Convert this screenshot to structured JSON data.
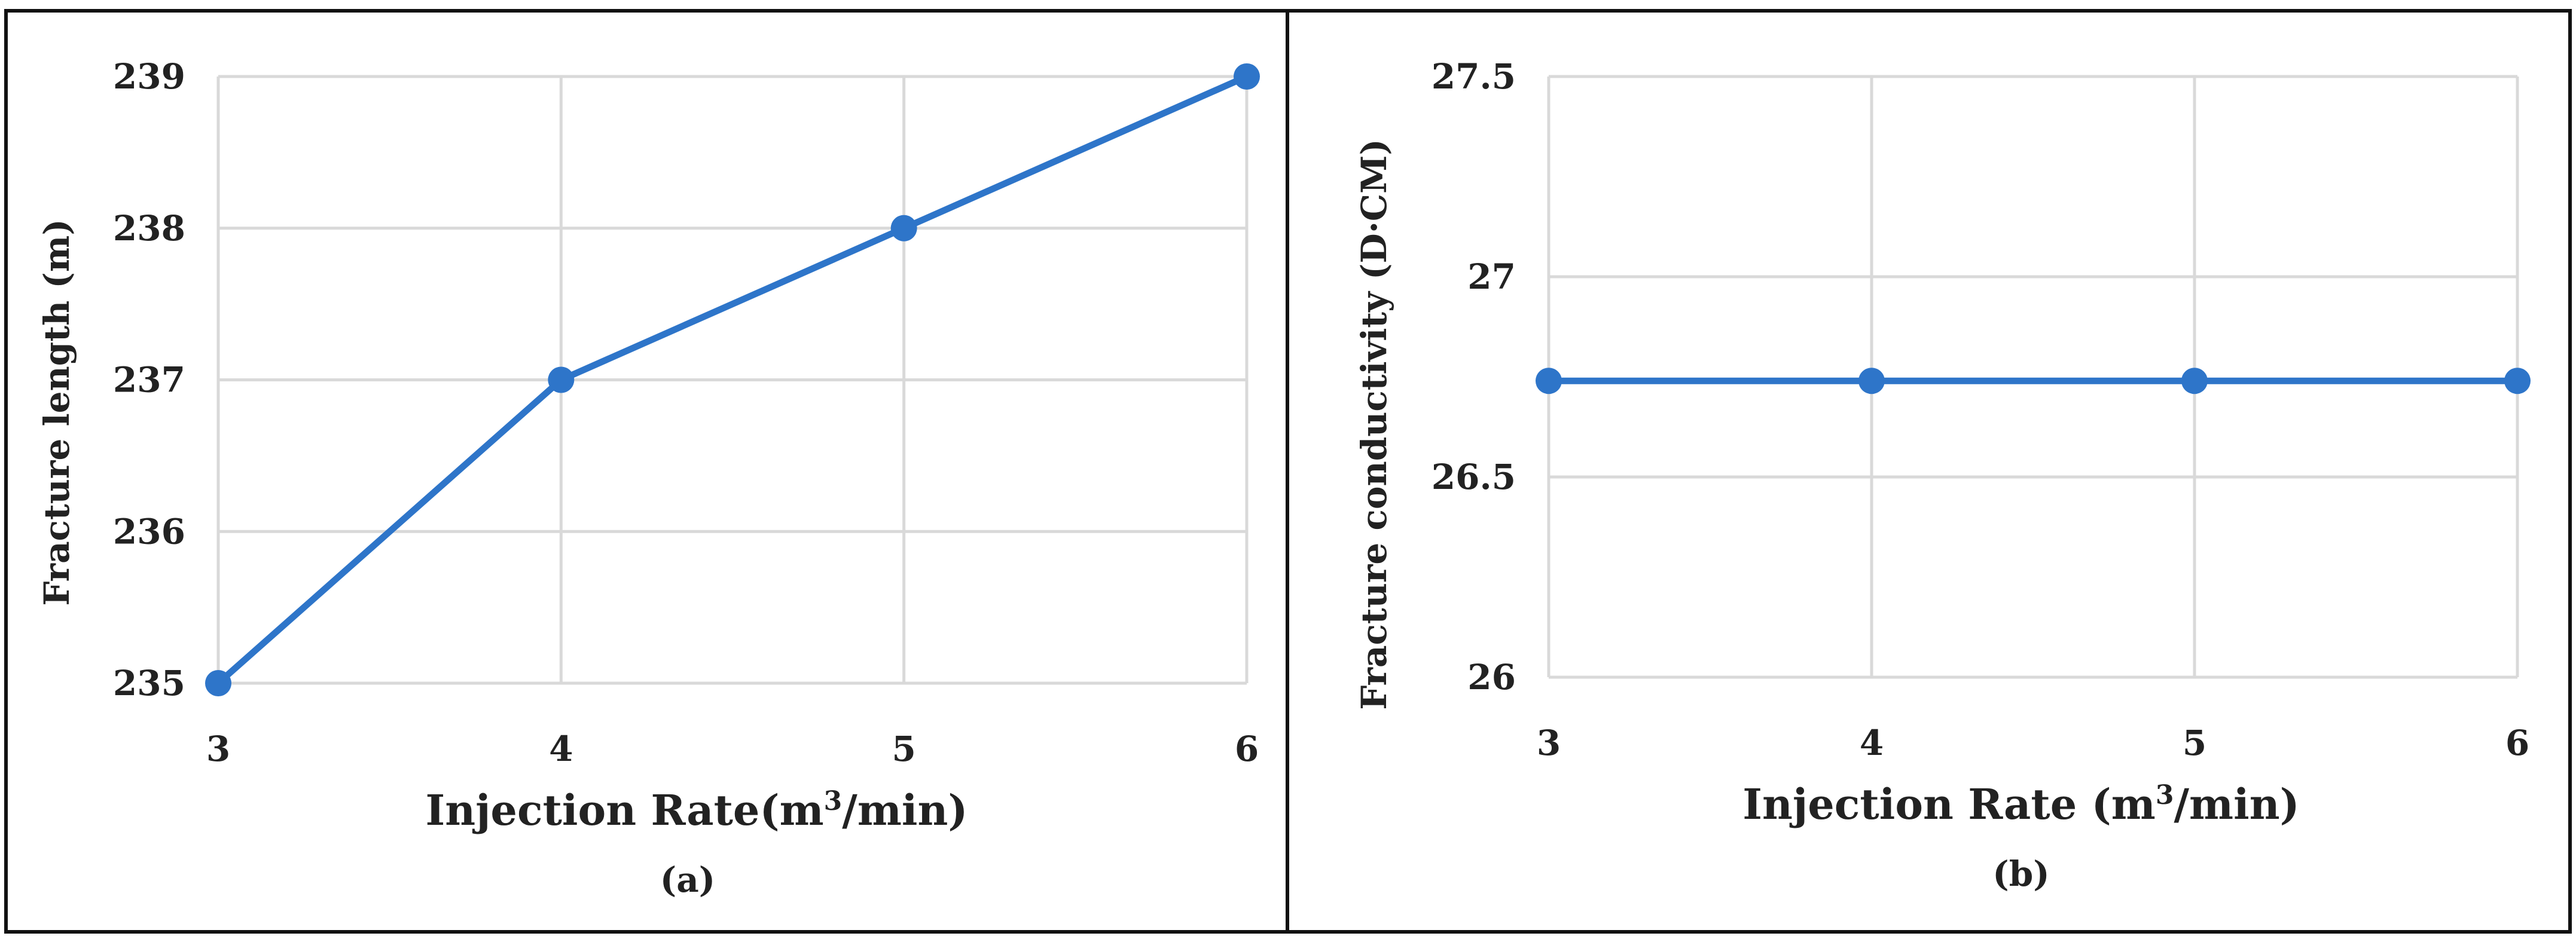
{
  "colors": {
    "series": "#2e75c9",
    "grid": "#d9d9d9",
    "frame": "#111111"
  },
  "chart_data": [
    {
      "type": "line",
      "panel_label": "(a)",
      "xlabel": "Injection Rate(m",
      "xlabel_sup": "3",
      "xlabel_end": "/min)",
      "ylabel": "Fracture length (m)",
      "x": [
        3,
        4,
        5,
        6
      ],
      "y": [
        235,
        237,
        238,
        239
      ],
      "xlim": [
        3,
        6
      ],
      "ylim": [
        235,
        239
      ],
      "xticks": [
        "3",
        "4",
        "5",
        "6"
      ],
      "yticks": [
        "235",
        "236",
        "237",
        "238",
        "239"
      ],
      "grid": true
    },
    {
      "type": "line",
      "panel_label": "(b)",
      "xlabel": "Injection Rate (m",
      "xlabel_sup": "3",
      "xlabel_end": "/min)",
      "ylabel": "Fracture conductivity  (D·CM)",
      "x": [
        3,
        4,
        5,
        6
      ],
      "y": [
        26.74,
        26.74,
        26.74,
        26.74
      ],
      "xlim": [
        3,
        6
      ],
      "ylim": [
        26,
        27.5
      ],
      "xticks": [
        "3",
        "4",
        "5",
        "6"
      ],
      "yticks": [
        "26",
        "26.5",
        "27",
        "27.5"
      ],
      "grid": true
    }
  ]
}
